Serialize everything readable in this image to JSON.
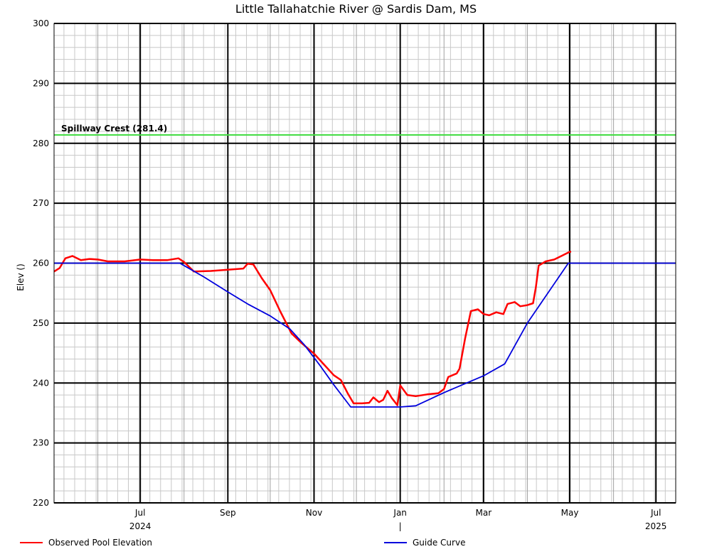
{
  "chart_data": {
    "type": "line",
    "title": "Little Tallahatchie River @ Sardis Dam, MS",
    "ylabel": "Elev ()",
    "ylim": [
      220,
      300
    ],
    "yticks": [
      220,
      230,
      240,
      250,
      260,
      270,
      280,
      290,
      300
    ],
    "xlim": [
      "2024-05-01",
      "2025-07-15"
    ],
    "xticks": [
      {
        "date": "2024-07-01",
        "label": "Jul",
        "sublabel": "2024"
      },
      {
        "date": "2024-09-01",
        "label": "Sep",
        "sublabel": ""
      },
      {
        "date": "2024-11-01",
        "label": "Nov",
        "sublabel": ""
      },
      {
        "date": "2025-01-01",
        "label": "Jan",
        "sublabel": "|"
      },
      {
        "date": "2025-03-01",
        "label": "Mar",
        "sublabel": ""
      },
      {
        "date": "2025-05-01",
        "label": "May",
        "sublabel": ""
      },
      {
        "date": "2025-07-01",
        "label": "Jul",
        "sublabel": "2025"
      }
    ],
    "minor_x_dates": [
      "2024-06-01",
      "2024-08-01",
      "2024-10-01",
      "2024-12-01",
      "2025-02-01",
      "2025-04-01",
      "2025-06-01"
    ],
    "grid": true,
    "reference_line": {
      "label": "Spillway Crest (281.4)",
      "y": 281.4,
      "color": "#44dd44"
    },
    "series": [
      {
        "name": "Observed Pool Elevation",
        "color": "#ff0000",
        "points": [
          [
            "2024-05-01",
            258.6
          ],
          [
            "2024-05-05",
            259.2
          ],
          [
            "2024-05-09",
            260.8
          ],
          [
            "2024-05-14",
            261.2
          ],
          [
            "2024-05-20",
            260.5
          ],
          [
            "2024-05-26",
            260.7
          ],
          [
            "2024-06-01",
            260.6
          ],
          [
            "2024-06-08",
            260.3
          ],
          [
            "2024-06-20",
            260.3
          ],
          [
            "2024-07-01",
            260.6
          ],
          [
            "2024-07-10",
            260.5
          ],
          [
            "2024-07-20",
            260.5
          ],
          [
            "2024-07-28",
            260.8
          ],
          [
            "2024-08-01",
            260.2
          ],
          [
            "2024-08-08",
            258.6
          ],
          [
            "2024-08-20",
            258.7
          ],
          [
            "2024-09-01",
            258.9
          ],
          [
            "2024-09-12",
            259.1
          ],
          [
            "2024-09-15",
            259.9
          ],
          [
            "2024-09-19",
            259.8
          ],
          [
            "2024-09-25",
            257.5
          ],
          [
            "2024-10-01",
            255.5
          ],
          [
            "2024-10-08",
            252.0
          ],
          [
            "2024-10-16",
            248.3
          ],
          [
            "2024-10-23",
            246.7
          ],
          [
            "2024-11-01",
            244.9
          ],
          [
            "2024-11-08",
            243.1
          ],
          [
            "2024-11-15",
            241.3
          ],
          [
            "2024-11-20",
            240.5
          ],
          [
            "2024-11-25",
            238.2
          ],
          [
            "2024-11-29",
            236.6
          ],
          [
            "2024-12-05",
            236.6
          ],
          [
            "2024-12-10",
            236.7
          ],
          [
            "2024-12-13",
            237.6
          ],
          [
            "2024-12-17",
            236.8
          ],
          [
            "2024-12-20",
            237.2
          ],
          [
            "2024-12-23",
            238.7
          ],
          [
            "2024-12-26",
            237.5
          ],
          [
            "2024-12-30",
            236.3
          ],
          [
            "2025-01-01",
            239.6
          ],
          [
            "2025-01-06",
            238.0
          ],
          [
            "2025-01-12",
            237.8
          ],
          [
            "2025-01-20",
            238.1
          ],
          [
            "2025-01-28",
            238.3
          ],
          [
            "2025-02-01",
            239.0
          ],
          [
            "2025-02-04",
            241.0
          ],
          [
            "2025-02-10",
            241.6
          ],
          [
            "2025-02-12",
            242.4
          ],
          [
            "2025-02-16",
            247.5
          ],
          [
            "2025-02-20",
            252.0
          ],
          [
            "2025-02-25",
            252.3
          ],
          [
            "2025-03-01",
            251.5
          ],
          [
            "2025-03-05",
            251.3
          ],
          [
            "2025-03-10",
            251.8
          ],
          [
            "2025-03-15",
            251.5
          ],
          [
            "2025-03-18",
            253.2
          ],
          [
            "2025-03-23",
            253.5
          ],
          [
            "2025-03-27",
            252.8
          ],
          [
            "2025-04-01",
            253.0
          ],
          [
            "2025-04-05",
            253.3
          ],
          [
            "2025-04-07",
            256.0
          ],
          [
            "2025-04-09",
            259.6
          ],
          [
            "2025-04-14",
            260.3
          ],
          [
            "2025-04-20",
            260.6
          ],
          [
            "2025-04-26",
            261.3
          ],
          [
            "2025-05-01",
            261.9
          ],
          [
            "2025-05-02",
            261.9
          ]
        ]
      },
      {
        "name": "Guide Curve",
        "color": "#0000dd",
        "points": [
          [
            "2024-05-01",
            260.0
          ],
          [
            "2024-07-29",
            260.0
          ],
          [
            "2024-08-15",
            257.7
          ],
          [
            "2024-09-01",
            255.2
          ],
          [
            "2024-09-15",
            253.2
          ],
          [
            "2024-10-01",
            251.2
          ],
          [
            "2024-10-15",
            249.0
          ],
          [
            "2024-10-25",
            246.4
          ],
          [
            "2024-11-05",
            243.0
          ],
          [
            "2024-11-15",
            239.7
          ],
          [
            "2024-11-27",
            236.0
          ],
          [
            "2025-01-01",
            236.0
          ],
          [
            "2025-01-12",
            236.2
          ],
          [
            "2025-02-01",
            238.4
          ],
          [
            "2025-03-01",
            241.2
          ],
          [
            "2025-03-16",
            243.2
          ],
          [
            "2025-04-01",
            250.0
          ],
          [
            "2025-04-30",
            260.0
          ],
          [
            "2025-07-15",
            260.0
          ]
        ]
      }
    ]
  },
  "legend": {
    "observed_label": "Observed Pool Elevation",
    "guide_label": "Guide Curve"
  }
}
